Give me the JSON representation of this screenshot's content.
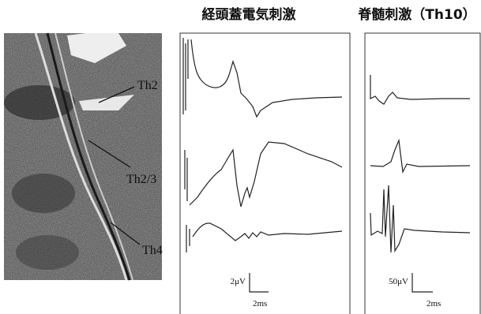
{
  "titles": [
    "経頭蓋電気刺激",
    "脊髄刺激（Th10）"
  ],
  "labels": [
    "Th2",
    "Th2/3",
    "Th4"
  ],
  "scale_bars": [
    {
      "amplitude": "2μV",
      "time": "2ms"
    },
    {
      "amplitude": "50μV",
      "time": "2ms"
    }
  ]
}
